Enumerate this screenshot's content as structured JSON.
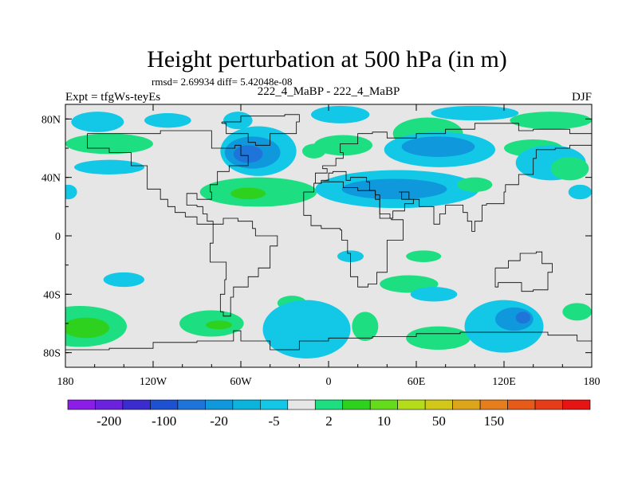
{
  "chart_data": {
    "type": "heatmap",
    "title": "Height perturbation at 500 hPa (in m)",
    "stats_text": "rmsd= 2.69934  diff= 5.42048e-08",
    "left_label": "Expt = tfgWs-teyEs",
    "center_label": "222_4_MaBP - 222_4_MaBP",
    "right_label": "DJF",
    "x_ticks": [
      {
        "lon": -180,
        "label": "180"
      },
      {
        "lon": -120,
        "label": "120W"
      },
      {
        "lon": -60,
        "label": "60W"
      },
      {
        "lon": 0,
        "label": "0"
      },
      {
        "lon": 60,
        "label": "60E"
      },
      {
        "lon": 120,
        "label": "120E"
      },
      {
        "lon": 180,
        "label": "180"
      }
    ],
    "y_ticks": [
      {
        "lat": 80,
        "label": "80N"
      },
      {
        "lat": 40,
        "label": "40N"
      },
      {
        "lat": 0,
        "label": "0"
      },
      {
        "lat": -40,
        "label": "40S"
      },
      {
        "lat": -80,
        "label": "80S"
      }
    ],
    "xlim": [
      -180,
      180
    ],
    "ylim": [
      -90,
      90
    ],
    "colorbar": {
      "colors": [
        "#8a1ee6",
        "#6a22dd",
        "#3b2ccf",
        "#1e50d2",
        "#1e74d8",
        "#0f98db",
        "#0bb4dc",
        "#12c8e6",
        "#e6e6e6",
        "#1ddf82",
        "#2ed21e",
        "#64dc1c",
        "#b4dc1a",
        "#d2c81a",
        "#dca51a",
        "#e67e1e",
        "#e65a1a",
        "#e63c1a",
        "#e61414"
      ],
      "labels": [
        "-200",
        "-100",
        "-20",
        "-5",
        "2",
        "10",
        "50",
        "150"
      ]
    },
    "anomalies": [
      {
        "lon": -158,
        "lat": 78,
        "rx": 18,
        "ry": 7,
        "value": -4
      },
      {
        "lon": -110,
        "lat": 79,
        "rx": 16,
        "ry": 5,
        "value": -6
      },
      {
        "lon": -62,
        "lat": 79,
        "rx": 10,
        "ry": 6,
        "value": -4
      },
      {
        "lon": 8,
        "lat": 83,
        "rx": 20,
        "ry": 6,
        "value": -4
      },
      {
        "lon": 100,
        "lat": 84,
        "rx": 30,
        "ry": 5,
        "value": -4
      },
      {
        "lon": 152,
        "lat": 79,
        "rx": 28,
        "ry": 6,
        "value": 5
      },
      {
        "lon": -150,
        "lat": 63,
        "rx": 30,
        "ry": 7,
        "value": 6
      },
      {
        "lon": -150,
        "lat": 47,
        "rx": 24,
        "ry": 5,
        "value": -4
      },
      {
        "lon": -178,
        "lat": 30,
        "rx": 6,
        "ry": 5,
        "value": -4
      },
      {
        "lon": -48,
        "lat": 58,
        "rx": 26,
        "ry": 17,
        "value": -5
      },
      {
        "lon": -52,
        "lat": 57,
        "rx": 19,
        "ry": 11,
        "value": -12
      },
      {
        "lon": -55,
        "lat": 56,
        "rx": 10,
        "ry": 6,
        "value": -22
      },
      {
        "lon": -10,
        "lat": 58,
        "rx": 8,
        "ry": 5,
        "value": 4
      },
      {
        "lon": -48,
        "lat": 30,
        "rx": 40,
        "ry": 10,
        "value": 6
      },
      {
        "lon": -55,
        "lat": 29,
        "rx": 12,
        "ry": 4,
        "value": 15
      },
      {
        "lon": 10,
        "lat": 62,
        "rx": 20,
        "ry": 7,
        "value": 4
      },
      {
        "lon": 68,
        "lat": 70,
        "rx": 24,
        "ry": 11,
        "value": 4
      },
      {
        "lon": 76,
        "lat": 59,
        "rx": 38,
        "ry": 12,
        "value": -5
      },
      {
        "lon": 75,
        "lat": 61,
        "rx": 25,
        "ry": 7,
        "value": -12
      },
      {
        "lon": 47,
        "lat": 32,
        "rx": 56,
        "ry": 13,
        "value": -5
      },
      {
        "lon": 45,
        "lat": 32,
        "rx": 36,
        "ry": 7,
        "value": -12
      },
      {
        "lon": 100,
        "lat": 35,
        "rx": 12,
        "ry": 5,
        "value": 4
      },
      {
        "lon": 140,
        "lat": 60,
        "rx": 20,
        "ry": 6,
        "value": 4
      },
      {
        "lon": 152,
        "lat": 50,
        "rx": 24,
        "ry": 12,
        "value": -5
      },
      {
        "lon": 165,
        "lat": 46,
        "rx": 13,
        "ry": 8,
        "value": 7
      },
      {
        "lon": 172,
        "lat": 30,
        "rx": 8,
        "ry": 5,
        "value": -4
      },
      {
        "lon": 15,
        "lat": -14,
        "rx": 9,
        "ry": 4,
        "value": -4
      },
      {
        "lon": 65,
        "lat": -14,
        "rx": 12,
        "ry": 4,
        "value": 4
      },
      {
        "lon": -140,
        "lat": -30,
        "rx": 14,
        "ry": 5,
        "value": -4
      },
      {
        "lon": -25,
        "lat": -46,
        "rx": 10,
        "ry": 5,
        "value": 5
      },
      {
        "lon": 55,
        "lat": -33,
        "rx": 20,
        "ry": 6,
        "value": 4
      },
      {
        "lon": 72,
        "lat": -40,
        "rx": 16,
        "ry": 5,
        "value": -4
      },
      {
        "lon": -170,
        "lat": -62,
        "rx": 32,
        "ry": 14,
        "value": 6
      },
      {
        "lon": -166,
        "lat": -63,
        "rx": 16,
        "ry": 7,
        "value": 15
      },
      {
        "lon": -80,
        "lat": -60,
        "rx": 22,
        "ry": 9,
        "value": 5
      },
      {
        "lon": -75,
        "lat": -61,
        "rx": 9,
        "ry": 3,
        "value": 14
      },
      {
        "lon": -15,
        "lat": -64,
        "rx": 30,
        "ry": 20,
        "value": -4
      },
      {
        "lon": 25,
        "lat": -62,
        "rx": 9,
        "ry": 10,
        "value": 5
      },
      {
        "lon": 75,
        "lat": -70,
        "rx": 22,
        "ry": 8,
        "value": 5
      },
      {
        "lon": 120,
        "lat": -62,
        "rx": 27,
        "ry": 18,
        "value": -6
      },
      {
        "lon": 127,
        "lat": -57,
        "rx": 13,
        "ry": 8,
        "value": -12
      },
      {
        "lon": 133,
        "lat": -56,
        "rx": 5,
        "ry": 4,
        "value": -22
      },
      {
        "lon": 170,
        "lat": -52,
        "rx": 10,
        "ry": 6,
        "value": 5
      }
    ],
    "coastlines": [
      {
        "name": "north-america",
        "points": [
          [
            -165,
            70
          ],
          [
            -140,
            70
          ],
          [
            -115,
            72
          ],
          [
            -95,
            72
          ],
          [
            -80,
            68
          ],
          [
            -80,
            60
          ],
          [
            -64,
            62
          ],
          [
            -60,
            55
          ],
          [
            -55,
            48
          ],
          [
            -68,
            44
          ],
          [
            -76,
            35
          ],
          [
            -81,
            30
          ],
          [
            -80,
            25
          ],
          [
            -90,
            29
          ],
          [
            -97,
            26
          ],
          [
            -97,
            21
          ],
          [
            -90,
            20
          ],
          [
            -86,
            15
          ],
          [
            -83,
            10
          ],
          [
            -79,
            8
          ],
          [
            -83,
            8
          ],
          [
            -90,
            13
          ],
          [
            -98,
            16
          ],
          [
            -105,
            20
          ],
          [
            -110,
            25
          ],
          [
            -115,
            32
          ],
          [
            -124,
            40
          ],
          [
            -124,
            48
          ],
          [
            -135,
            57
          ],
          [
            -150,
            60
          ],
          [
            -165,
            60
          ],
          [
            -165,
            70
          ]
        ]
      },
      {
        "name": "south-america",
        "points": [
          [
            -79,
            8
          ],
          [
            -72,
            12
          ],
          [
            -62,
            10
          ],
          [
            -52,
            5
          ],
          [
            -50,
            0
          ],
          [
            -35,
            -7
          ],
          [
            -40,
            -22
          ],
          [
            -48,
            -28
          ],
          [
            -55,
            -35
          ],
          [
            -65,
            -42
          ],
          [
            -67,
            -55
          ],
          [
            -72,
            -52
          ],
          [
            -74,
            -40
          ],
          [
            -71,
            -30
          ],
          [
            -70,
            -18
          ],
          [
            -81,
            -5
          ],
          [
            -79,
            8
          ]
        ]
      },
      {
        "name": "greenland",
        "points": [
          [
            -73,
            78
          ],
          [
            -60,
            82
          ],
          [
            -30,
            83
          ],
          [
            -20,
            78
          ],
          [
            -22,
            70
          ],
          [
            -40,
            62
          ],
          [
            -50,
            64
          ],
          [
            -55,
            70
          ],
          [
            -70,
            77
          ],
          [
            -73,
            78
          ]
        ]
      },
      {
        "name": "eurasia",
        "points": [
          [
            -10,
            36
          ],
          [
            -9,
            43
          ],
          [
            -1,
            46
          ],
          [
            -4,
            48
          ],
          [
            5,
            53
          ],
          [
            10,
            57
          ],
          [
            8,
            63
          ],
          [
            20,
            70
          ],
          [
            30,
            71
          ],
          [
            40,
            67
          ],
          [
            60,
            70
          ],
          [
            80,
            73
          ],
          [
            100,
            77
          ],
          [
            130,
            72
          ],
          [
            140,
            73
          ],
          [
            165,
            70
          ],
          [
            180,
            67
          ],
          [
            180,
            62
          ],
          [
            165,
            60
          ],
          [
            155,
            59
          ],
          [
            142,
            53
          ],
          [
            140,
            42
          ],
          [
            130,
            35
          ],
          [
            121,
            30
          ],
          [
            120,
            22
          ],
          [
            108,
            21
          ],
          [
            105,
            10
          ],
          [
            100,
            3
          ],
          [
            98,
            10
          ],
          [
            95,
            16
          ],
          [
            92,
            21
          ],
          [
            80,
            15
          ],
          [
            76,
            8
          ],
          [
            72,
            20
          ],
          [
            62,
            25
          ],
          [
            57,
            25
          ],
          [
            50,
            30
          ],
          [
            48,
            30
          ],
          [
            55,
            25
          ],
          [
            58,
            22
          ],
          [
            52,
            17
          ],
          [
            44,
            12
          ],
          [
            42,
            15
          ],
          [
            35,
            28
          ],
          [
            32,
            31
          ],
          [
            28,
            37
          ],
          [
            26,
            40
          ],
          [
            20,
            40
          ],
          [
            15,
            38
          ],
          [
            12,
            44
          ],
          [
            8,
            44
          ],
          [
            3,
            43
          ],
          [
            0,
            38
          ],
          [
            -5,
            36
          ],
          [
            -10,
            36
          ]
        ]
      },
      {
        "name": "africa",
        "points": [
          [
            -17,
            21
          ],
          [
            -17,
            14
          ],
          [
            -12,
            7
          ],
          [
            -5,
            5
          ],
          [
            8,
            4
          ],
          [
            9,
            -3
          ],
          [
            13,
            -12
          ],
          [
            15,
            -28
          ],
          [
            20,
            -35
          ],
          [
            27,
            -33
          ],
          [
            33,
            -25
          ],
          [
            40,
            -15
          ],
          [
            40,
            -3
          ],
          [
            51,
            11
          ],
          [
            43,
            12
          ],
          [
            35,
            25
          ],
          [
            32,
            31
          ],
          [
            20,
            33
          ],
          [
            10,
            37
          ],
          [
            -5,
            36
          ],
          [
            -10,
            30
          ],
          [
            -17,
            21
          ]
        ]
      },
      {
        "name": "australia",
        "points": [
          [
            114,
            -22
          ],
          [
            123,
            -17
          ],
          [
            131,
            -12
          ],
          [
            137,
            -12
          ],
          [
            142,
            -11
          ],
          [
            146,
            -19
          ],
          [
            153,
            -25
          ],
          [
            150,
            -37
          ],
          [
            140,
            -38
          ],
          [
            132,
            -32
          ],
          [
            116,
            -35
          ],
          [
            114,
            -22
          ]
        ]
      },
      {
        "name": "antarctica",
        "points": [
          [
            -180,
            -78
          ],
          [
            -150,
            -77
          ],
          [
            -120,
            -73
          ],
          [
            -90,
            -72
          ],
          [
            -65,
            -65
          ],
          [
            -60,
            -72
          ],
          [
            -40,
            -78
          ],
          [
            -20,
            -72
          ],
          [
            0,
            -70
          ],
          [
            30,
            -69
          ],
          [
            60,
            -67
          ],
          [
            90,
            -66
          ],
          [
            120,
            -66
          ],
          [
            150,
            -68
          ],
          [
            170,
            -72
          ],
          [
            180,
            -78
          ]
        ]
      }
    ]
  }
}
